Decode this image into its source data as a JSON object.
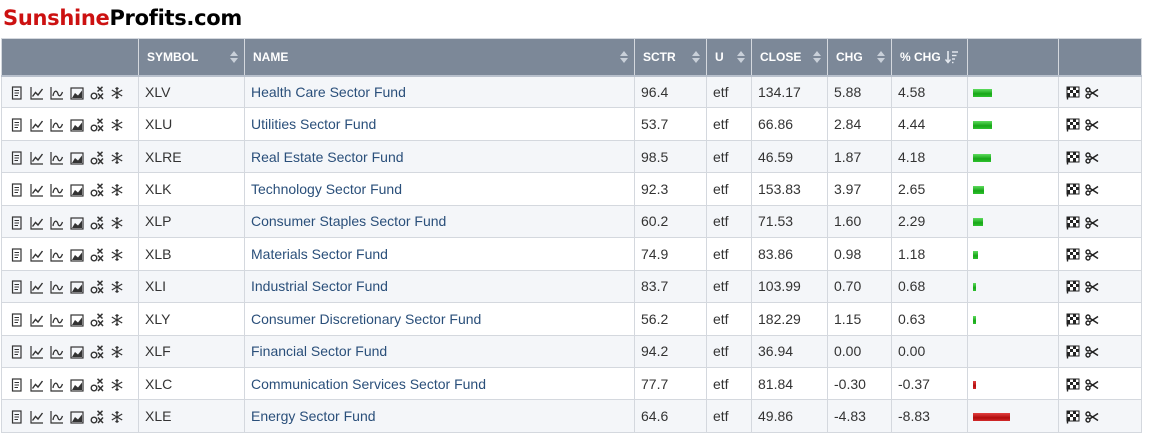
{
  "logo": {
    "part1": "Sunshine",
    "part2": "Profits.com"
  },
  "table": {
    "columns": {
      "symbol": "SYMBOL",
      "name": "NAME",
      "sctr": "SCTR",
      "u": "U",
      "close": "CLOSE",
      "chg": "CHG",
      "pchg": "% CHG"
    },
    "row_icons": [
      "document-icon",
      "line-chart-icon",
      "seasonality-icon",
      "area-chart-icon",
      "point-figure-icon",
      "snowflake-icon"
    ],
    "action_icons": [
      "checkered-flag-icon",
      "scissors-icon"
    ],
    "bar_scale_max_abs": 8.83,
    "rows": [
      {
        "symbol": "XLV",
        "name": "Health Care Sector Fund",
        "sctr": "96.4",
        "u": "etf",
        "close": "134.17",
        "chg": "5.88",
        "pchg": "4.58",
        "pchg_value": 4.58
      },
      {
        "symbol": "XLU",
        "name": "Utilities Sector Fund",
        "sctr": "53.7",
        "u": "etf",
        "close": "66.86",
        "chg": "2.84",
        "pchg": "4.44",
        "pchg_value": 4.44
      },
      {
        "symbol": "XLRE",
        "name": "Real Estate Sector Fund",
        "sctr": "98.5",
        "u": "etf",
        "close": "46.59",
        "chg": "1.87",
        "pchg": "4.18",
        "pchg_value": 4.18
      },
      {
        "symbol": "XLK",
        "name": "Technology Sector Fund",
        "sctr": "92.3",
        "u": "etf",
        "close": "153.83",
        "chg": "3.97",
        "pchg": "2.65",
        "pchg_value": 2.65
      },
      {
        "symbol": "XLP",
        "name": "Consumer Staples Sector Fund",
        "sctr": "60.2",
        "u": "etf",
        "close": "71.53",
        "chg": "1.60",
        "pchg": "2.29",
        "pchg_value": 2.29
      },
      {
        "symbol": "XLB",
        "name": "Materials Sector Fund",
        "sctr": "74.9",
        "u": "etf",
        "close": "83.86",
        "chg": "0.98",
        "pchg": "1.18",
        "pchg_value": 1.18
      },
      {
        "symbol": "XLI",
        "name": "Industrial Sector Fund",
        "sctr": "83.7",
        "u": "etf",
        "close": "103.99",
        "chg": "0.70",
        "pchg": "0.68",
        "pchg_value": 0.68
      },
      {
        "symbol": "XLY",
        "name": "Consumer Discretionary Sector Fund",
        "sctr": "56.2",
        "u": "etf",
        "close": "182.29",
        "chg": "1.15",
        "pchg": "0.63",
        "pchg_value": 0.63
      },
      {
        "symbol": "XLF",
        "name": "Financial Sector Fund",
        "sctr": "94.2",
        "u": "etf",
        "close": "36.94",
        "chg": "0.00",
        "pchg": "0.00",
        "pchg_value": 0.0
      },
      {
        "symbol": "XLC",
        "name": "Communication Services Sector Fund",
        "sctr": "77.7",
        "u": "etf",
        "close": "81.84",
        "chg": "-0.30",
        "pchg": "-0.37",
        "pchg_value": -0.37
      },
      {
        "symbol": "XLE",
        "name": "Energy Sector Fund",
        "sctr": "64.6",
        "u": "etf",
        "close": "49.86",
        "chg": "-4.83",
        "pchg": "-8.83",
        "pchg_value": -8.83
      }
    ]
  },
  "colors": {
    "header_bg": "#7c8898",
    "link": "#2a4f7a",
    "positive_bar": "#17a617",
    "negative_bar": "#b10d0d",
    "logo_red": "#cc1111"
  }
}
